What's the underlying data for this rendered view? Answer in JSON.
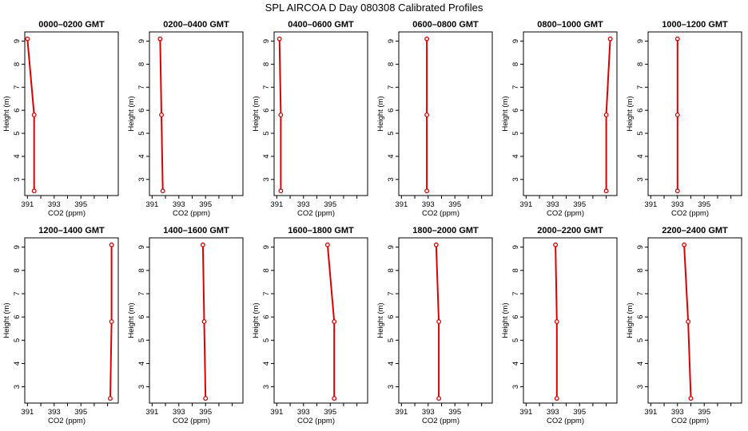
{
  "figure": {
    "title": "SPL AIRCOA D  Day 080308  Calibrated Profiles",
    "line_color": "#dd0000",
    "marker_color": "#dd0000"
  },
  "chart_data": [
    {
      "type": "line",
      "title": "0000–0200 GMT",
      "xlabel": "CO2 (ppm)",
      "ylabel": "Height (m)",
      "xlim": [
        390.8,
        397.8
      ],
      "ylim": [
        2.3,
        9.4
      ],
      "grid": false,
      "xticks": [
        391,
        393,
        395
      ],
      "xtick_labels": [
        "391",
        "393",
        "395"
      ],
      "yticks": [
        3,
        4,
        5,
        6,
        7,
        8,
        9
      ],
      "ytick_labels": [
        "3",
        "4",
        "5",
        "6",
        "7",
        "8",
        "9"
      ],
      "x": [
        391.5,
        391.5,
        391.0
      ],
      "y": [
        2.5,
        5.8,
        9.1
      ],
      "markers": [
        true,
        true,
        true
      ]
    },
    {
      "type": "line",
      "title": "0200–0400 GMT",
      "xlabel": "CO2 (ppm)",
      "ylabel": "Height (m)",
      "xlim": [
        390.8,
        397.8
      ],
      "ylim": [
        2.3,
        9.4
      ],
      "grid": false,
      "xticks": [
        391,
        393,
        395
      ],
      "xtick_labels": [
        "391",
        "393",
        "395"
      ],
      "yticks": [
        3,
        4,
        5,
        6,
        7,
        8,
        9
      ],
      "ytick_labels": [
        "3",
        "4",
        "5",
        "6",
        "7",
        "8",
        "9"
      ],
      "x": [
        391.8,
        391.7,
        391.6
      ],
      "y": [
        2.5,
        5.8,
        9.1
      ],
      "markers": [
        true,
        true,
        true
      ]
    },
    {
      "type": "line",
      "title": "0400–0600 GMT",
      "xlabel": "CO2 (ppm)",
      "ylabel": "Height (m)",
      "xlim": [
        390.8,
        397.8
      ],
      "ylim": [
        2.3,
        9.4
      ],
      "grid": false,
      "xticks": [
        391,
        393,
        395
      ],
      "xtick_labels": [
        "391",
        "393",
        "395"
      ],
      "yticks": [
        3,
        4,
        5,
        6,
        7,
        8,
        9
      ],
      "ytick_labels": [
        "3",
        "4",
        "5",
        "6",
        "7",
        "8",
        "9"
      ],
      "x": [
        391.3,
        391.3,
        391.2
      ],
      "y": [
        2.5,
        5.8,
        9.1
      ],
      "markers": [
        true,
        true,
        true
      ]
    },
    {
      "type": "line",
      "title": "0600–0800 GMT",
      "xlabel": "CO2 (ppm)",
      "ylabel": "Height (m)",
      "xlim": [
        390.8,
        397.8
      ],
      "ylim": [
        2.3,
        9.4
      ],
      "grid": false,
      "xticks": [
        391,
        393,
        395
      ],
      "xtick_labels": [
        "391",
        "393",
        "395"
      ],
      "yticks": [
        3,
        4,
        5,
        6,
        7,
        8,
        9
      ],
      "ytick_labels": [
        "3",
        "4",
        "5",
        "6",
        "7",
        "8",
        "9"
      ],
      "x": [
        392.9,
        392.9,
        392.9
      ],
      "y": [
        2.5,
        5.8,
        9.1
      ],
      "markers": [
        true,
        true,
        true
      ]
    },
    {
      "type": "line",
      "title": "0800–1000 GMT",
      "xlabel": "CO2 (ppm)",
      "ylabel": "Height (m)",
      "xlim": [
        390.8,
        397.8
      ],
      "ylim": [
        2.3,
        9.4
      ],
      "grid": false,
      "xticks": [
        391,
        393,
        395
      ],
      "xtick_labels": [
        "391",
        "393",
        "395"
      ],
      "yticks": [
        3,
        4,
        5,
        6,
        7,
        8,
        9
      ],
      "ytick_labels": [
        "3",
        "4",
        "5",
        "6",
        "7",
        "8",
        "9"
      ],
      "x": [
        397.0,
        397.0,
        397.3
      ],
      "y": [
        2.5,
        5.8,
        9.1
      ],
      "markers": [
        true,
        true,
        true
      ]
    },
    {
      "type": "line",
      "title": "1000–1200 GMT",
      "xlabel": "CO2 (ppm)",
      "ylabel": "Height (m)",
      "xlim": [
        390.8,
        397.8
      ],
      "ylim": [
        2.3,
        9.4
      ],
      "grid": false,
      "xticks": [
        391,
        393,
        395
      ],
      "xtick_labels": [
        "391",
        "393",
        "395"
      ],
      "yticks": [
        3,
        4,
        5,
        6,
        7,
        8,
        9
      ],
      "ytick_labels": [
        "3",
        "4",
        "5",
        "6",
        "7",
        "8",
        "9"
      ],
      "x": [
        393.0,
        393.0,
        393.0
      ],
      "y": [
        2.5,
        5.8,
        9.1
      ],
      "markers": [
        true,
        true,
        true
      ]
    },
    {
      "type": "line",
      "title": "1200–1400 GMT",
      "xlabel": "CO2 (ppm)",
      "ylabel": "Height (m)",
      "xlim": [
        390.8,
        397.8
      ],
      "ylim": [
        2.3,
        9.4
      ],
      "grid": false,
      "xticks": [
        391,
        393,
        395
      ],
      "xtick_labels": [
        "391",
        "393",
        "395"
      ],
      "yticks": [
        3,
        4,
        5,
        6,
        7,
        8,
        9
      ],
      "ytick_labels": [
        "3",
        "4",
        "5",
        "6",
        "7",
        "8",
        "9"
      ],
      "x": [
        397.2,
        397.3,
        397.3
      ],
      "y": [
        2.5,
        5.8,
        9.1
      ],
      "markers": [
        true,
        true,
        true
      ]
    },
    {
      "type": "line",
      "title": "1400–1600 GMT",
      "xlabel": "CO2 (ppm)",
      "ylabel": "Height (m)",
      "xlim": [
        390.8,
        397.8
      ],
      "ylim": [
        2.3,
        9.4
      ],
      "grid": false,
      "xticks": [
        391,
        393,
        395
      ],
      "xtick_labels": [
        "391",
        "393",
        "395"
      ],
      "yticks": [
        3,
        4,
        5,
        6,
        7,
        8,
        9
      ],
      "ytick_labels": [
        "3",
        "4",
        "5",
        "6",
        "7",
        "8",
        "9"
      ],
      "x": [
        395.0,
        394.9,
        394.8
      ],
      "y": [
        2.5,
        5.8,
        9.1
      ],
      "markers": [
        true,
        true,
        true
      ]
    },
    {
      "type": "line",
      "title": "1600–1800 GMT",
      "xlabel": "CO2 (ppm)",
      "ylabel": "Height (m)",
      "xlim": [
        390.8,
        397.8
      ],
      "ylim": [
        2.3,
        9.4
      ],
      "grid": false,
      "xticks": [
        391,
        393,
        395
      ],
      "xtick_labels": [
        "391",
        "393",
        "395"
      ],
      "yticks": [
        3,
        4,
        5,
        6,
        7,
        8,
        9
      ],
      "ytick_labels": [
        "3",
        "4",
        "5",
        "6",
        "7",
        "8",
        "9"
      ],
      "x": [
        395.3,
        395.3,
        394.8
      ],
      "y": [
        2.5,
        5.8,
        9.1
      ],
      "markers": [
        true,
        true,
        true
      ]
    },
    {
      "type": "line",
      "title": "1800–2000 GMT",
      "xlabel": "CO2 (ppm)",
      "ylabel": "Height (m)",
      "xlim": [
        390.8,
        397.8
      ],
      "ylim": [
        2.3,
        9.4
      ],
      "grid": false,
      "xticks": [
        391,
        393,
        395
      ],
      "xtick_labels": [
        "391",
        "393",
        "395"
      ],
      "yticks": [
        3,
        4,
        5,
        6,
        7,
        8,
        9
      ],
      "ytick_labels": [
        "3",
        "4",
        "5",
        "6",
        "7",
        "8",
        "9"
      ],
      "x": [
        393.8,
        393.8,
        393.6
      ],
      "y": [
        2.5,
        5.8,
        9.1
      ],
      "markers": [
        true,
        true,
        true
      ]
    },
    {
      "type": "line",
      "title": "2000–2200 GMT",
      "xlabel": "CO2 (ppm)",
      "ylabel": "Height (m)",
      "xlim": [
        390.8,
        397.8
      ],
      "ylim": [
        2.3,
        9.4
      ],
      "grid": false,
      "xticks": [
        391,
        393,
        395
      ],
      "xtick_labels": [
        "391",
        "393",
        "395"
      ],
      "yticks": [
        3,
        4,
        5,
        6,
        7,
        8,
        9
      ],
      "ytick_labels": [
        "3",
        "4",
        "5",
        "6",
        "7",
        "8",
        "9"
      ],
      "x": [
        393.3,
        393.3,
        393.2
      ],
      "y": [
        2.5,
        5.8,
        9.1
      ],
      "markers": [
        true,
        true,
        true
      ]
    },
    {
      "type": "line",
      "title": "2200–2400 GMT",
      "xlabel": "CO2 (ppm)",
      "ylabel": "Height (m)",
      "xlim": [
        390.8,
        397.8
      ],
      "ylim": [
        2.3,
        9.4
      ],
      "grid": false,
      "xticks": [
        391,
        393,
        395
      ],
      "xtick_labels": [
        "391",
        "393",
        "395"
      ],
      "yticks": [
        3,
        4,
        5,
        6,
        7,
        8,
        9
      ],
      "ytick_labels": [
        "3",
        "4",
        "5",
        "6",
        "7",
        "8",
        "9"
      ],
      "x": [
        394.0,
        393.8,
        393.5
      ],
      "y": [
        2.5,
        5.8,
        9.1
      ],
      "markers": [
        true,
        true,
        true
      ]
    }
  ]
}
